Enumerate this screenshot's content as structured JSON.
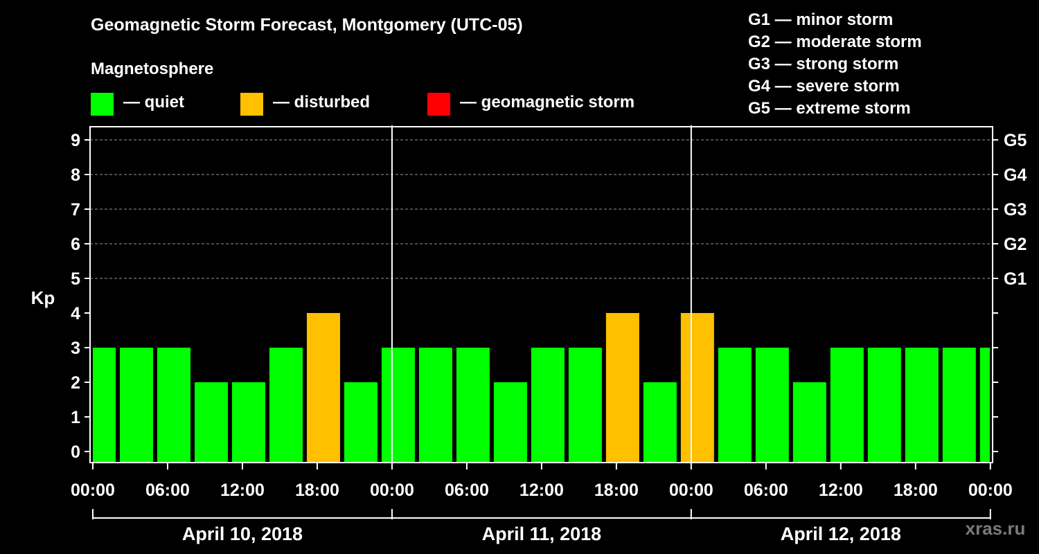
{
  "title": "Geomagnetic Storm Forecast, Montgomery (UTC-05)",
  "subtitle": "Magnetosphere",
  "legend": [
    {
      "label": "— quiet",
      "color": "#00ff00"
    },
    {
      "label": "— disturbed",
      "color": "#ffc000"
    },
    {
      "label": "— geomagnetic storm",
      "color": "#ff0000"
    }
  ],
  "g_levels": [
    "G1 — minor storm",
    "G2 — moderate storm",
    "G3 — strong storm",
    "G4 — severe storm",
    "G5 — extreme storm"
  ],
  "watermark": "xras.ru",
  "chart_data": {
    "type": "bar",
    "ylabel": "Kp",
    "ylim": [
      0,
      9
    ],
    "yticks": [
      0,
      1,
      2,
      3,
      4,
      5,
      6,
      7,
      8,
      9
    ],
    "right_axis_labels": [
      {
        "kp": 5,
        "label": "G1"
      },
      {
        "kp": 6,
        "label": "G2"
      },
      {
        "kp": 7,
        "label": "G3"
      },
      {
        "kp": 8,
        "label": "G4"
      },
      {
        "kp": 9,
        "label": "G5"
      }
    ],
    "x_range_hours": [
      0,
      72
    ],
    "x_start_hour": -1,
    "bar_interval_hours": 3,
    "xtick_labels": [
      "00:00",
      "06:00",
      "12:00",
      "18:00",
      "00:00",
      "06:00",
      "12:00",
      "18:00",
      "00:00",
      "06:00",
      "12:00",
      "18:00",
      "00:00"
    ],
    "days": [
      "April 10, 2018",
      "April 11, 2018",
      "April 12, 2018"
    ],
    "values": [
      3,
      3,
      3,
      2,
      2,
      3,
      4,
      2,
      3,
      3,
      3,
      2,
      3,
      3,
      4,
      2,
      4,
      3,
      3,
      2,
      3,
      3,
      3,
      3,
      3
    ],
    "colors": {
      "quiet": "#00ff00",
      "disturbed": "#ffc000",
      "storm": "#ff0000"
    }
  }
}
